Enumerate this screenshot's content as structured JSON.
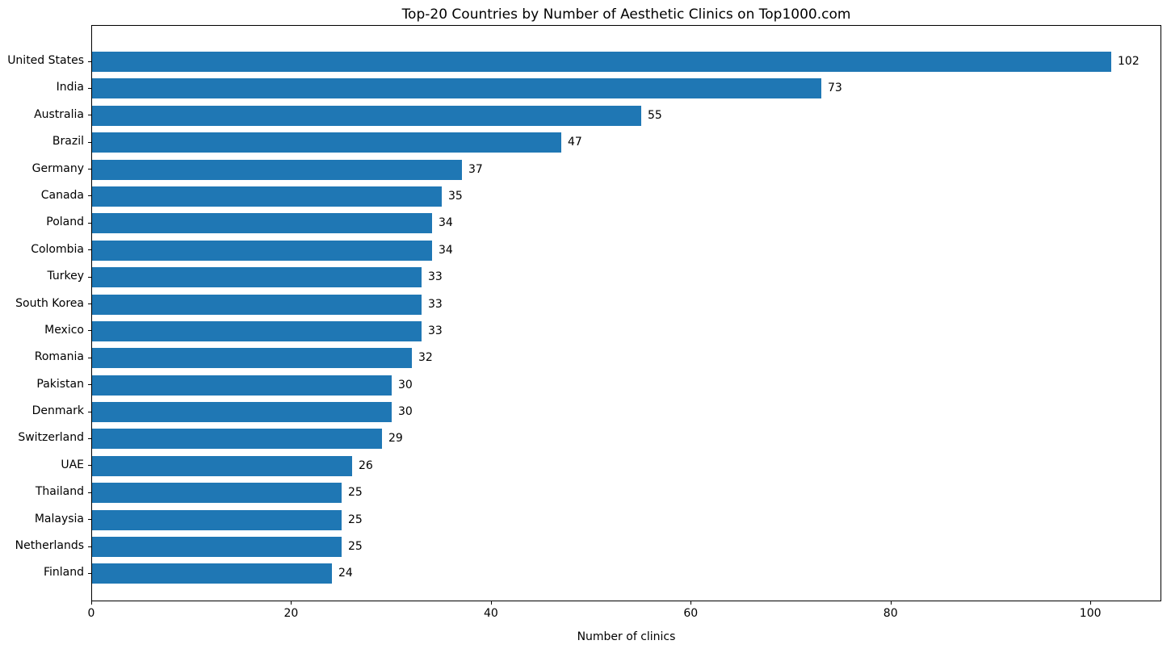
{
  "chart_data": {
    "type": "bar",
    "orientation": "horizontal",
    "title": "Top-20 Countries by Number of Aesthetic Clinics on Top1000.com",
    "xlabel": "Number of clinics",
    "ylabel": "",
    "categories": [
      "United States",
      "India",
      "Australia",
      "Brazil",
      "Germany",
      "Canada",
      "Poland",
      "Colombia",
      "Turkey",
      "South Korea",
      "Mexico",
      "Romania",
      "Pakistan",
      "Denmark",
      "Switzerland",
      "UAE",
      "Thailand",
      "Malaysia",
      "Netherlands",
      "Finland"
    ],
    "values": [
      102,
      73,
      55,
      47,
      37,
      35,
      34,
      34,
      33,
      33,
      33,
      32,
      30,
      30,
      29,
      26,
      25,
      25,
      25,
      24
    ],
    "value_labels_shown": true,
    "xticks": [
      0,
      20,
      40,
      60,
      80,
      100
    ],
    "xlim": [
      0,
      107.1
    ],
    "grid": false,
    "legend": null,
    "bar_color": "#1f77b4",
    "text_color": "#000000",
    "background_color": "#ffffff"
  }
}
